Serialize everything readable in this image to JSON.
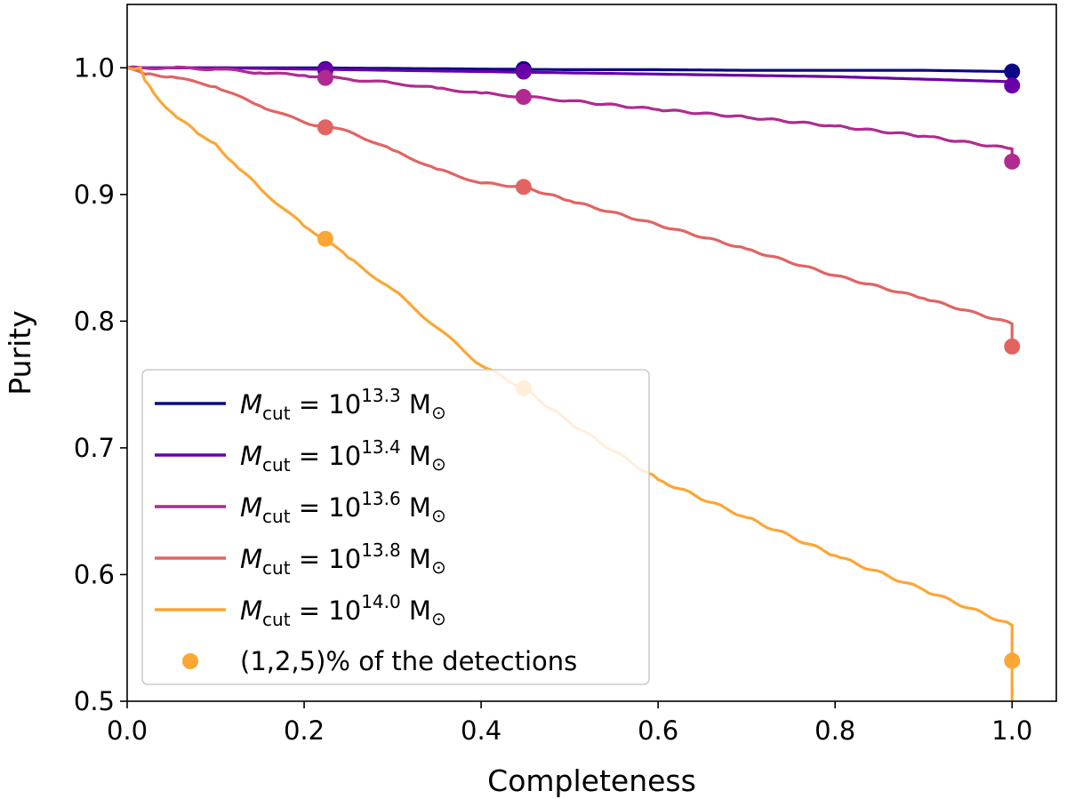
{
  "chart_data": {
    "type": "line",
    "title": "",
    "xlabel": "Completeness",
    "ylabel": "Purity",
    "xlim": [
      0.0,
      1.05
    ],
    "ylim": [
      0.5,
      1.05
    ],
    "xticks": [
      "0.0",
      "0.2",
      "0.4",
      "0.6",
      "0.8",
      "1.0"
    ],
    "yticks": [
      "0.5",
      "0.6",
      "0.7",
      "0.8",
      "0.9",
      "1.0"
    ],
    "grid": false,
    "legend_position": "lower-left",
    "series": [
      {
        "name": "M_cut = 10^13.3 M_sun",
        "label_base": "10",
        "label_exp": "13.3",
        "color": "#0d0887",
        "x": [
          0.0,
          0.1,
          0.2,
          0.3,
          0.4,
          0.5,
          0.6,
          0.7,
          0.8,
          0.9,
          1.0,
          1.0
        ],
        "y": [
          1.0,
          1.0,
          1.0,
          0.9995,
          0.999,
          0.9985,
          0.9985,
          0.998,
          0.998,
          0.998,
          0.997,
          0.997
        ],
        "markers": [
          [
            0.224,
            0.999
          ],
          [
            0.448,
            0.999
          ],
          [
            1.0,
            0.997
          ]
        ]
      },
      {
        "name": "M_cut = 10^13.4 M_sun",
        "label_base": "10",
        "label_exp": "13.4",
        "color": "#6a00a8",
        "x": [
          0.0,
          0.1,
          0.2,
          0.3,
          0.4,
          0.5,
          0.6,
          0.7,
          0.8,
          0.9,
          1.0,
          1.0
        ],
        "y": [
          1.0,
          1.0,
          0.999,
          0.998,
          0.997,
          0.996,
          0.995,
          0.994,
          0.993,
          0.991,
          0.989,
          0.986
        ],
        "markers": [
          [
            0.224,
            0.998
          ],
          [
            0.448,
            0.997
          ],
          [
            1.0,
            0.986
          ]
        ]
      },
      {
        "name": "M_cut = 10^13.6 M_sun",
        "label_base": "10",
        "label_exp": "13.6",
        "color": "#b12a90",
        "x": [
          0.0,
          0.05,
          0.1,
          0.15,
          0.2,
          0.25,
          0.3,
          0.35,
          0.4,
          0.45,
          0.5,
          0.6,
          0.7,
          0.8,
          0.9,
          1.0,
          1.0
        ],
        "y": [
          1.0,
          1.0,
          0.999,
          0.996,
          0.994,
          0.991,
          0.988,
          0.984,
          0.98,
          0.977,
          0.974,
          0.967,
          0.961,
          0.954,
          0.946,
          0.936,
          0.926
        ],
        "markers": [
          [
            0.224,
            0.992
          ],
          [
            0.448,
            0.977
          ],
          [
            1.0,
            0.926
          ]
        ]
      },
      {
        "name": "M_cut = 10^13.8 M_sun",
        "label_base": "10",
        "label_exp": "13.8",
        "color": "#e16462",
        "x": [
          0.0,
          0.02,
          0.05,
          0.1,
          0.15,
          0.2,
          0.224,
          0.25,
          0.3,
          0.35,
          0.4,
          0.448,
          0.5,
          0.6,
          0.7,
          0.8,
          0.9,
          1.0,
          1.0
        ],
        "y": [
          1.0,
          0.995,
          0.993,
          0.985,
          0.97,
          0.957,
          0.953,
          0.95,
          0.935,
          0.92,
          0.909,
          0.906,
          0.895,
          0.876,
          0.857,
          0.836,
          0.818,
          0.798,
          0.78
        ],
        "markers": [
          [
            0.224,
            0.953
          ],
          [
            0.448,
            0.906
          ],
          [
            1.0,
            0.78
          ]
        ]
      },
      {
        "name": "M_cut = 10^14.0 M_sun",
        "label_base": "10",
        "label_exp": "14.0",
        "color": "#fca636",
        "x": [
          0.0,
          0.015,
          0.02,
          0.03,
          0.05,
          0.08,
          0.1,
          0.12,
          0.15,
          0.2,
          0.224,
          0.25,
          0.3,
          0.35,
          0.4,
          0.448,
          0.5,
          0.6,
          0.7,
          0.8,
          0.9,
          1.0,
          1.0
        ],
        "y": [
          1.0,
          1.0,
          0.99,
          0.98,
          0.965,
          0.948,
          0.94,
          0.925,
          0.905,
          0.875,
          0.865,
          0.85,
          0.825,
          0.795,
          0.765,
          0.747,
          0.72,
          0.675,
          0.645,
          0.615,
          0.588,
          0.56,
          0.5
        ],
        "markers": [
          [
            0.224,
            0.865
          ],
          [
            0.448,
            0.747
          ],
          [
            1.0,
            0.532
          ]
        ]
      }
    ],
    "marker_legend": "(1,2,5)% of the detections",
    "marker_legend_color": "#fca636"
  },
  "legend": {
    "m_symbol": "M",
    "m_sub": "cut",
    "equals": " = ",
    "unit": "M",
    "unit_symbol": "⊙"
  }
}
